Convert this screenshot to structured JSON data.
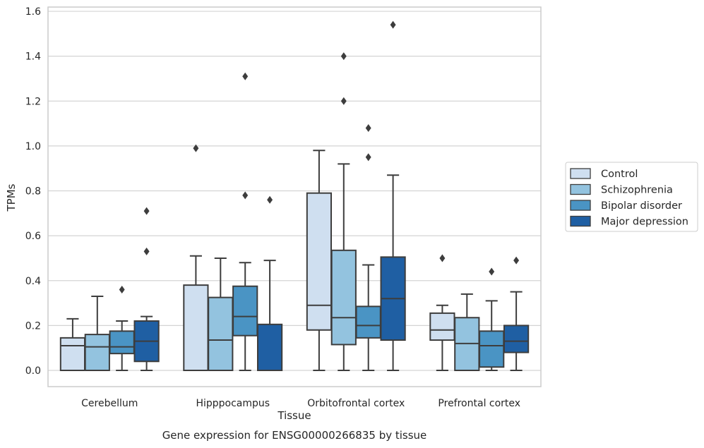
{
  "chart_data": {
    "type": "boxplot",
    "title": "Gene expression for ENSG00000266835 by tissue",
    "xlabel": "Tissue",
    "ylabel": "TPMs",
    "ylim": [
      -0.075,
      1.62
    ],
    "yticks": [
      0.0,
      0.2,
      0.4,
      0.6,
      0.8,
      1.0,
      1.2,
      1.4,
      1.6
    ],
    "ytick_labels": [
      "0.0",
      "0.2",
      "0.4",
      "0.6",
      "0.8",
      "1.0",
      "1.2",
      "1.4",
      "1.6"
    ],
    "grid": "horizontal",
    "legend_position": "right",
    "categories": [
      "Cerebellum",
      "Hipppocampus",
      "Orbitofrontal cortex",
      "Prefrontal cortex"
    ],
    "series": [
      {
        "name": "Control",
        "color": "#cfdff0",
        "boxes": [
          {
            "whislo": 0.0,
            "q1": 0.0,
            "med": 0.11,
            "q3": 0.145,
            "whishi": 0.23,
            "fliers": []
          },
          {
            "whislo": 0.0,
            "q1": 0.0,
            "med": 0.0,
            "q3": 0.38,
            "whishi": 0.51,
            "fliers": [
              0.99
            ]
          },
          {
            "whislo": 0.0,
            "q1": 0.18,
            "med": 0.29,
            "q3": 0.79,
            "whishi": 0.98,
            "fliers": []
          },
          {
            "whislo": 0.0,
            "q1": 0.135,
            "med": 0.18,
            "q3": 0.255,
            "whishi": 0.29,
            "fliers": [
              0.5
            ]
          }
        ]
      },
      {
        "name": "Schizophrenia",
        "color": "#93c3df",
        "boxes": [
          {
            "whislo": 0.0,
            "q1": 0.0,
            "med": 0.105,
            "q3": 0.16,
            "whishi": 0.33,
            "fliers": []
          },
          {
            "whislo": 0.0,
            "q1": 0.0,
            "med": 0.135,
            "q3": 0.325,
            "whishi": 0.5,
            "fliers": []
          },
          {
            "whislo": 0.0,
            "q1": 0.115,
            "med": 0.235,
            "q3": 0.535,
            "whishi": 0.92,
            "fliers": [
              1.2,
              1.4
            ]
          },
          {
            "whislo": 0.0,
            "q1": 0.0,
            "med": 0.12,
            "q3": 0.235,
            "whishi": 0.34,
            "fliers": []
          }
        ]
      },
      {
        "name": "Bipolar disorder",
        "color": "#4a94c4",
        "boxes": [
          {
            "whislo": 0.0,
            "q1": 0.075,
            "med": 0.105,
            "q3": 0.175,
            "whishi": 0.22,
            "fliers": [
              0.36
            ]
          },
          {
            "whislo": 0.0,
            "q1": 0.155,
            "med": 0.24,
            "q3": 0.375,
            "whishi": 0.48,
            "fliers": [
              0.78,
              1.31
            ]
          },
          {
            "whislo": 0.0,
            "q1": 0.145,
            "med": 0.2,
            "q3": 0.285,
            "whishi": 0.47,
            "fliers": [
              0.95,
              1.08
            ]
          },
          {
            "whislo": 0.0,
            "q1": 0.015,
            "med": 0.11,
            "q3": 0.175,
            "whishi": 0.31,
            "fliers": [
              0.44
            ]
          }
        ]
      },
      {
        "name": "Major depression",
        "color": "#1f5fa3",
        "boxes": [
          {
            "whislo": 0.0,
            "q1": 0.04,
            "med": 0.13,
            "q3": 0.22,
            "whishi": 0.24,
            "fliers": [
              0.53,
              0.71
            ]
          },
          {
            "whislo": 0.0,
            "q1": 0.0,
            "med": 0.0,
            "q3": 0.205,
            "whishi": 0.49,
            "fliers": [
              0.76
            ]
          },
          {
            "whislo": 0.0,
            "q1": 0.135,
            "med": 0.32,
            "q3": 0.505,
            "whishi": 0.87,
            "fliers": [
              1.54
            ]
          },
          {
            "whislo": 0.0,
            "q1": 0.08,
            "med": 0.13,
            "q3": 0.2,
            "whishi": 0.35,
            "fliers": [
              0.49
            ]
          }
        ]
      }
    ]
  }
}
